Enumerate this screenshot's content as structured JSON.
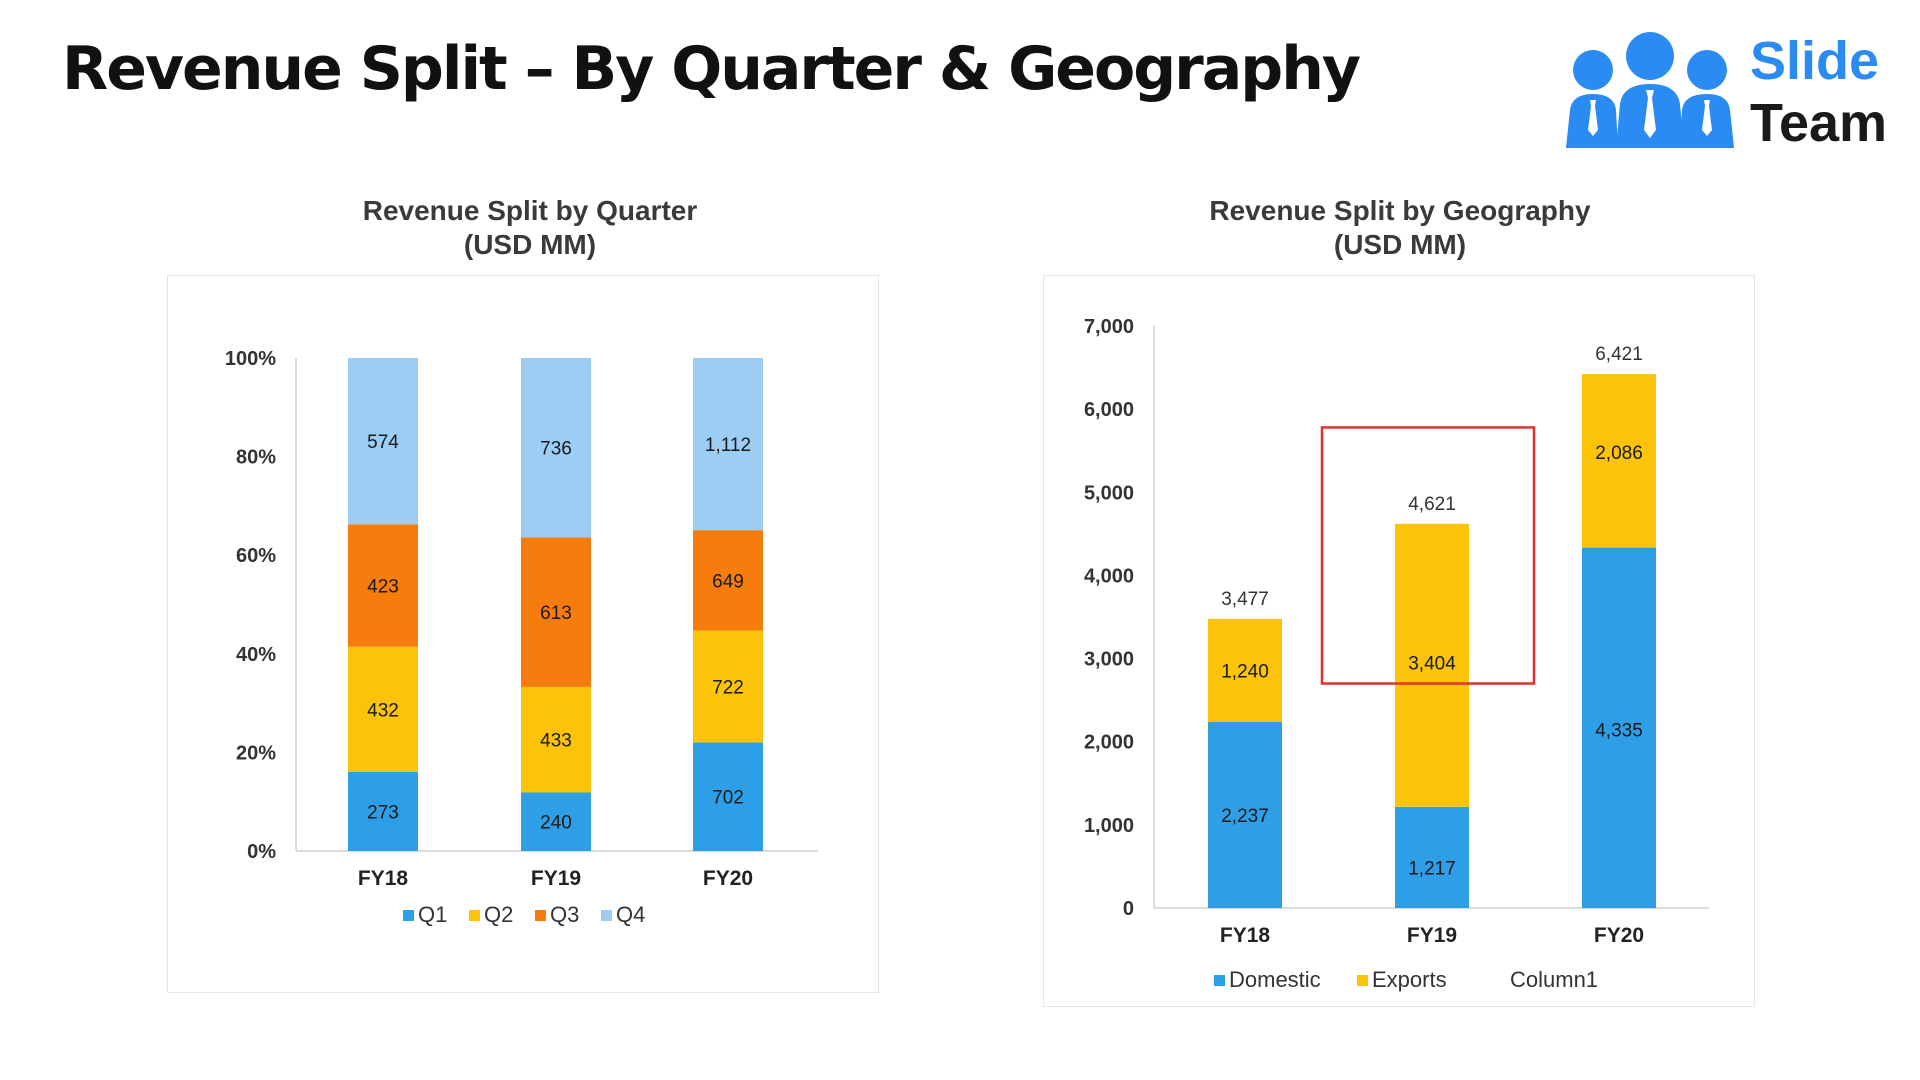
{
  "header": {
    "title": "Revenue Split – By Quarter & Geography"
  },
  "logo": {
    "word1": "Slide",
    "word2": "Team",
    "accent": "#2a8bf2"
  },
  "colors": {
    "q1": "#2e9ee6",
    "q2": "#fbc40a",
    "q3": "#f67c0d",
    "q4": "#9bcdf5",
    "domestic": "#2e9ee6",
    "exports": "#fbc40a",
    "highlight": "#e03030"
  },
  "chart_data": [
    {
      "type": "bar",
      "stacked": "percent",
      "title_line1": "Revenue Split by Quarter",
      "title_line2": "(USD MM)",
      "categories": [
        "FY18",
        "FY19",
        "FY20"
      ],
      "y_ticks": [
        "0%",
        "20%",
        "40%",
        "60%",
        "80%",
        "100%"
      ],
      "ylim": [
        0,
        100
      ],
      "legend_position": "bottom",
      "series": [
        {
          "name": "Q1",
          "values": [
            273,
            240,
            702
          ],
          "labels": [
            "273",
            "240",
            "702"
          ]
        },
        {
          "name": "Q2",
          "values": [
            432,
            433,
            722
          ],
          "labels": [
            "432",
            "433",
            "722"
          ]
        },
        {
          "name": "Q3",
          "values": [
            423,
            613,
            649
          ],
          "labels": [
            "423",
            "613",
            "649"
          ]
        },
        {
          "name": "Q4",
          "values": [
            574,
            736,
            1112
          ],
          "labels": [
            "574",
            "736",
            "1,112"
          ]
        }
      ]
    },
    {
      "type": "bar",
      "stacked": "absolute",
      "title_line1": "Revenue Split by Geography",
      "title_line2": "(USD MM)",
      "categories": [
        "FY18",
        "FY19",
        "FY20"
      ],
      "y_ticks": [
        "0",
        "1,000",
        "2,000",
        "3,000",
        "4,000",
        "5,000",
        "6,000",
        "7,000"
      ],
      "ylim": [
        0,
        7000
      ],
      "legend_position": "bottom",
      "series": [
        {
          "name": "Domestic",
          "values": [
            2237,
            1217,
            4335
          ],
          "labels": [
            "2,237",
            "1,217",
            "4,335"
          ]
        },
        {
          "name": "Exports",
          "values": [
            1240,
            3404,
            2086
          ],
          "labels": [
            "1,240",
            "3,404",
            "2,086"
          ]
        }
      ],
      "extra_legend_entry": "Column1",
      "totals": [
        3477,
        4621,
        6421
      ],
      "total_labels": [
        "3,477",
        "4,621",
        "6,421"
      ],
      "highlighted_category": "FY19"
    }
  ]
}
